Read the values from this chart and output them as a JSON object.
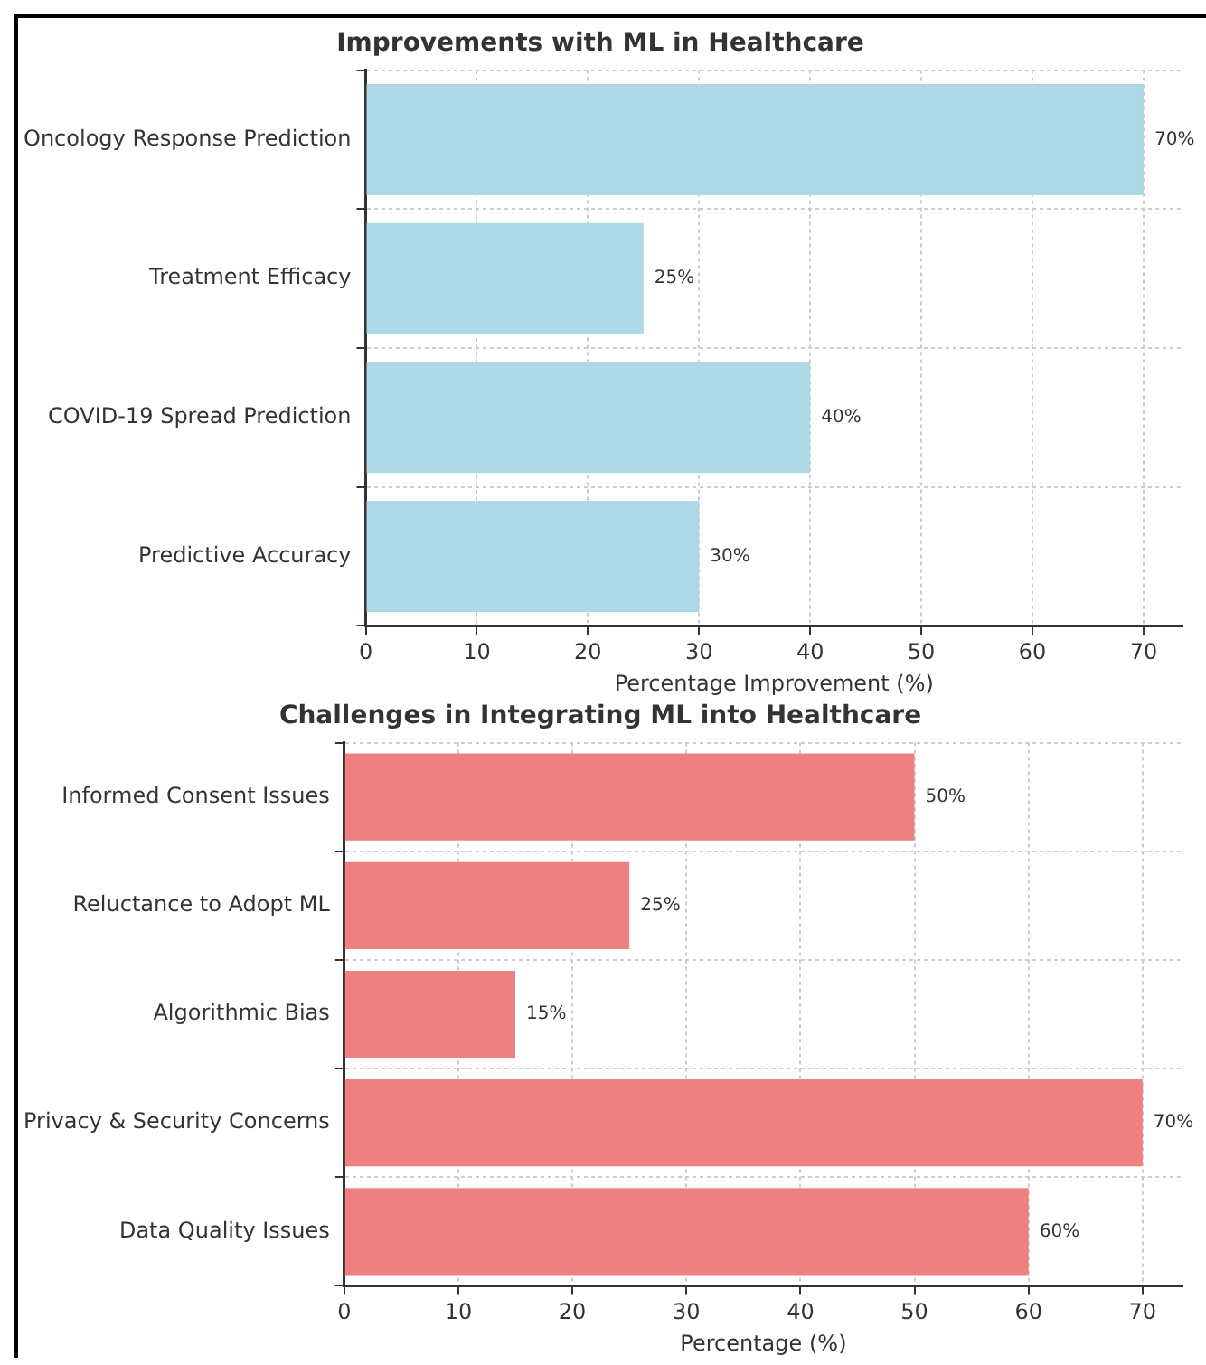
{
  "chart_data": [
    {
      "type": "bar",
      "orientation": "horizontal",
      "title": "Improvements with ML in Healthcare",
      "xlabel": "Percentage Improvement (%)",
      "categories": [
        "Oncology Response Prediction",
        "Treatment Efficacy",
        "COVID-19 Spread Prediction",
        "Predictive Accuracy"
      ],
      "values": [
        70,
        25,
        40,
        30
      ],
      "value_labels": [
        "70%",
        "25%",
        "40%",
        "30%"
      ],
      "color": "#add8e6",
      "xlim": [
        0,
        73.5
      ],
      "xticks": [
        0,
        10,
        20,
        30,
        40,
        50,
        60,
        70
      ],
      "grid": true
    },
    {
      "type": "bar",
      "orientation": "horizontal",
      "title": "Challenges in Integrating ML into Healthcare",
      "xlabel": "Percentage (%)",
      "categories": [
        "Informed Consent Issues",
        "Reluctance to Adopt ML",
        "Algorithmic Bias",
        "Privacy & Security Concerns",
        "Data Quality Issues"
      ],
      "values": [
        50,
        25,
        15,
        70,
        60
      ],
      "value_labels": [
        "50%",
        "25%",
        "15%",
        "70%",
        "60%"
      ],
      "color": "#f08080",
      "xlim": [
        0,
        73.5
      ],
      "xticks": [
        0,
        10,
        20,
        30,
        40,
        50,
        60,
        70
      ],
      "grid": true
    }
  ]
}
